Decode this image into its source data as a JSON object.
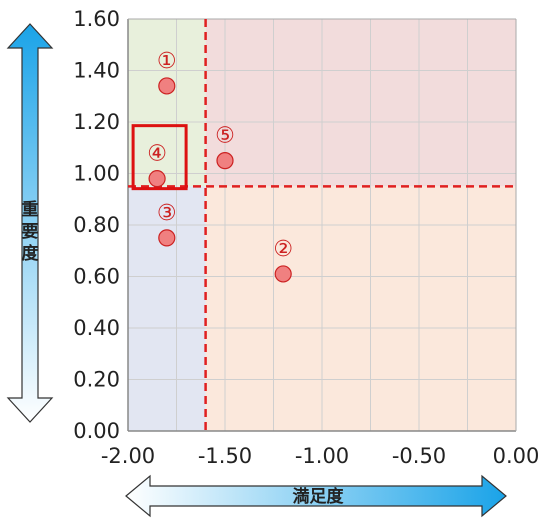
{
  "chart_data": {
    "type": "scatter",
    "xlabel": "満足度",
    "ylabel": "重要度",
    "xlim": [
      -2.0,
      0.0
    ],
    "ylim": [
      0.0,
      1.6
    ],
    "x_ticks": [
      "-2.00",
      "-1.50",
      "-1.00",
      "-0.50",
      "0.00"
    ],
    "y_ticks": [
      "0.00",
      "0.20",
      "0.40",
      "0.60",
      "0.80",
      "1.00",
      "1.20",
      "1.40",
      "1.60"
    ],
    "grid": true,
    "threshold": {
      "x": -1.6,
      "y": 0.95
    },
    "points": [
      {
        "label": "①",
        "x": -1.8,
        "y": 1.34
      },
      {
        "label": "②",
        "x": -1.2,
        "y": 0.61
      },
      {
        "label": "③",
        "x": -1.8,
        "y": 0.75
      },
      {
        "label": "④",
        "x": -1.85,
        "y": 0.98
      },
      {
        "label": "⑤",
        "x": -1.5,
        "y": 1.05
      }
    ],
    "highlighted_point": "④",
    "quadrant_colors": {
      "top_left": "#e8f0dc",
      "top_right": "#f2dcdc",
      "bottom_left": "#e2e6f2",
      "bottom_right": "#fbe8dc"
    },
    "colors": {
      "point_fill": "#f08080",
      "point_stroke": "#cc2222",
      "threshold_line": "#e02020",
      "highlight_box": "#dd1111",
      "arrow_dark": "#1aa3e8",
      "arrow_light": "#ffffff"
    }
  }
}
